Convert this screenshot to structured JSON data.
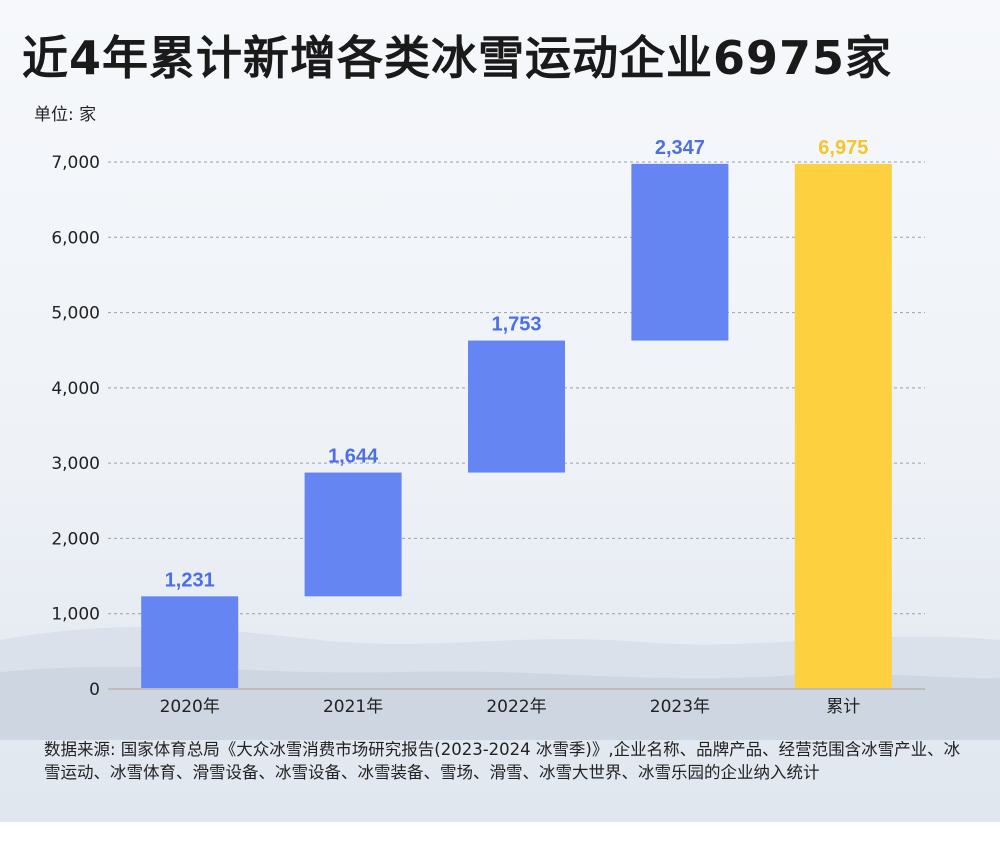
{
  "title": "近4年累计新增各类冰雪运动企业6975家",
  "unit_label": "单位: 家",
  "source_note": "数据来源: 国家体育总局《大众冰雪消费市场研究报告(2023-2024 冰雪季)》,企业名称、品牌产品、经营范围含冰雪产业、冰雪运动、冰雪体育、滑雪设备、冰雪设备、冰雪装备、雪场、滑雪、冰雪大世界、冰雪乐园的企业纳入统计",
  "colors": {
    "increase": "#6485f2",
    "total": "#fdd040",
    "increase_label": "#4d6fe6",
    "total_label": "#f5c52a"
  },
  "chart_data": {
    "type": "bar",
    "subtype": "waterfall",
    "categories": [
      "2020年",
      "2021年",
      "2022年",
      "2023年",
      "累计"
    ],
    "values": [
      1231,
      1644,
      1753,
      2347,
      6975
    ],
    "value_labels": [
      "1,231",
      "1,644",
      "1,753",
      "2,347",
      "6,975"
    ],
    "bar_kind": [
      "increase",
      "increase",
      "increase",
      "increase",
      "total"
    ],
    "ylim": [
      0,
      7000
    ],
    "yticks": [
      0,
      1000,
      2000,
      3000,
      4000,
      5000,
      6000,
      7000
    ],
    "ytick_labels": [
      "0",
      "1,000",
      "2,000",
      "3,000",
      "4,000",
      "5,000",
      "6,000",
      "7,000"
    ],
    "grid": true,
    "xlabel": "",
    "ylabel": ""
  }
}
